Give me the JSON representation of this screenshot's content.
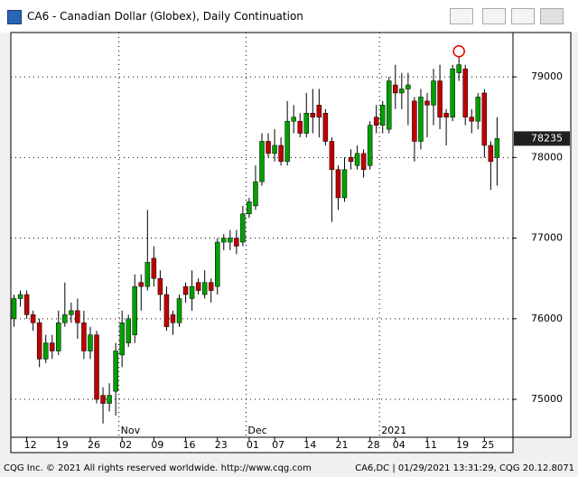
{
  "window_title": "CA6 - Canadian Dollar (Globex), Daily Continuation",
  "footer_left": "CQG Inc. © 2021 All rights reserved worldwide. http://www.cqg.com",
  "footer_right": "CA6,DC | 01/29/2021 13:31:29, CQG 20.12.8071",
  "chart_data": {
    "type": "candlestick",
    "up_color": "#00a000",
    "down_color": "#c00000",
    "grid": true,
    "ylim": [
      74530,
      79550
    ],
    "yticks": [
      75000,
      76000,
      77000,
      78000,
      79000
    ],
    "xlim": [
      -0.5,
      78.5
    ],
    "xticks": [
      {
        "value": 2,
        "label": "12"
      },
      {
        "value": 7,
        "label": "19"
      },
      {
        "value": 12,
        "label": "26"
      },
      {
        "value": 17,
        "label": "02"
      },
      {
        "value": 22,
        "label": "09"
      },
      {
        "value": 27,
        "label": "16"
      },
      {
        "value": 32,
        "label": "23"
      },
      {
        "value": 37,
        "label": "01"
      },
      {
        "value": 41,
        "label": "07"
      },
      {
        "value": 46,
        "label": "14"
      },
      {
        "value": 51,
        "label": "21"
      },
      {
        "value": 56,
        "label": "28"
      },
      {
        "value": 60,
        "label": "04"
      },
      {
        "value": 65,
        "label": "11"
      },
      {
        "value": 70,
        "label": "19"
      },
      {
        "value": 74,
        "label": "25"
      }
    ],
    "month_labels": [
      {
        "value": 16.5,
        "label": "Nov"
      },
      {
        "value": 36.5,
        "label": "Dec"
      },
      {
        "value": 57.5,
        "label": "2021"
      }
    ],
    "open": [
      76000,
      76250,
      76300,
      76050,
      75950,
      75500,
      75700,
      75600,
      75950,
      76050,
      76100,
      75950,
      75600,
      75800,
      75050,
      74950,
      75100,
      75550,
      75700,
      75800,
      76450,
      76400,
      76750,
      76500,
      76300,
      76050,
      75950,
      76400,
      76250,
      76450,
      76300,
      76450,
      76400,
      76950,
      76950,
      77000,
      76950,
      77300,
      77400,
      77700,
      78200,
      78050,
      78150,
      77950,
      78450,
      78450,
      78300,
      78550,
      78650,
      78550,
      78200,
      77850,
      77500,
      78000,
      77900,
      78050,
      77900,
      78500,
      78400,
      78350,
      78900,
      78800,
      78850,
      78700,
      78200,
      78700,
      78650,
      78950,
      78550,
      78500,
      79050,
      79100,
      78500,
      78450,
      78800,
      78150,
      78000
    ],
    "high": [
      76300,
      76350,
      76350,
      76100,
      76000,
      75800,
      75800,
      76100,
      76450,
      76200,
      76250,
      76100,
      75900,
      75850,
      75150,
      75200,
      75700,
      76100,
      76050,
      76550,
      76550,
      77350,
      76900,
      76600,
      76400,
      76100,
      76300,
      76450,
      76600,
      76500,
      76600,
      76500,
      77000,
      77050,
      77100,
      77100,
      77400,
      77500,
      77900,
      78300,
      78300,
      78350,
      78250,
      78700,
      78650,
      78550,
      78800,
      78850,
      78850,
      78600,
      78250,
      77900,
      78000,
      78100,
      78150,
      78100,
      78450,
      78650,
      78700,
      79000,
      79150,
      79050,
      79050,
      78750,
      78850,
      78800,
      79100,
      79150,
      78600,
      79150,
      79250,
      79150,
      78600,
      78800,
      78850,
      78200,
      78500
    ],
    "low": [
      75900,
      76150,
      76000,
      75850,
      75400,
      75450,
      75500,
      75550,
      75900,
      75950,
      75750,
      75500,
      75500,
      74950,
      74700,
      74850,
      74800,
      75400,
      75650,
      75700,
      76100,
      76350,
      76400,
      76100,
      75850,
      75800,
      75900,
      76200,
      76100,
      76300,
      76250,
      76200,
      76300,
      76850,
      76850,
      76800,
      76900,
      77250,
      77350,
      77650,
      78000,
      77950,
      77900,
      77900,
      78300,
      78250,
      78250,
      78300,
      78250,
      78150,
      77200,
      77350,
      77450,
      77850,
      77850,
      77750,
      77850,
      78300,
      78300,
      78300,
      78600,
      78600,
      78400,
      77950,
      78100,
      78250,
      78400,
      78350,
      78150,
      78450,
      78950,
      78400,
      78300,
      78350,
      78000,
      77600,
      77650
    ],
    "close": [
      76250,
      76300,
      76050,
      75950,
      75500,
      75700,
      75600,
      75950,
      76050,
      76100,
      75950,
      75600,
      75800,
      75000,
      74950,
      75050,
      75600,
      75950,
      76000,
      76400,
      76400,
      76700,
      76500,
      76300,
      75900,
      75950,
      76250,
      76300,
      76400,
      76350,
      76450,
      76350,
      76950,
      77000,
      77000,
      76900,
      77300,
      77450,
      77700,
      78200,
      78050,
      78150,
      77950,
      78450,
      78500,
      78300,
      78550,
      78500,
      78500,
      78200,
      77850,
      77500,
      77850,
      77950,
      78050,
      77850,
      78400,
      78400,
      78650,
      78950,
      78800,
      78850,
      78900,
      78200,
      78750,
      78650,
      78950,
      78500,
      78500,
      79100,
      79150,
      78500,
      78450,
      78750,
      78150,
      77950,
      78235
    ]
  }
}
